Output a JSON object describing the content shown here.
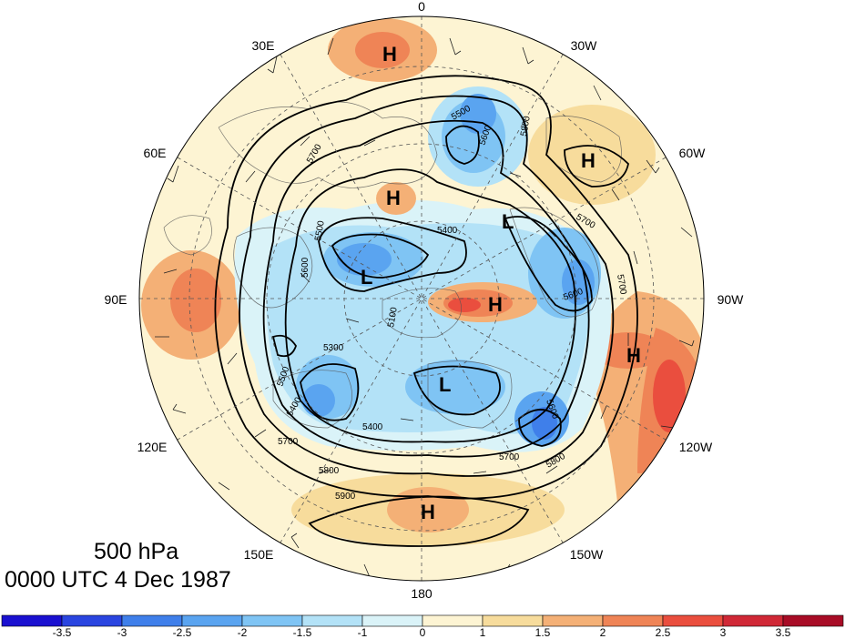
{
  "map": {
    "level": "500 hPa",
    "valid_time": "0000 UTC 4 Dec 1987",
    "longitude_labels": {
      "top": "0",
      "top_left": "30E",
      "top_right": "30W",
      "upper_left": "60E",
      "upper_right": "60W",
      "left": "90E",
      "right": "90W",
      "lower_left": "120E",
      "lower_right": "120W",
      "bottom_left": "150E",
      "bottom_right": "150W",
      "bottom": "180"
    },
    "pressure_centers": [
      {
        "type": "H"
      },
      {
        "type": "H"
      },
      {
        "type": "H"
      },
      {
        "type": "H"
      },
      {
        "type": "H"
      },
      {
        "type": "H"
      },
      {
        "type": "L"
      },
      {
        "type": "L"
      },
      {
        "type": "L"
      }
    ],
    "contour_labels": [
      "5500",
      "5600",
      "5700",
      "5800",
      "5400",
      "5500",
      "5600",
      "5700",
      "5300",
      "5100",
      "5400",
      "5400",
      "5600",
      "5700",
      "5700",
      "5800",
      "5800",
      "5500",
      "5700",
      "5900",
      "5600"
    ],
    "colorbar": {
      "ticks": [
        "-3.5",
        "-3",
        "-2.5",
        "-2",
        "-1.5",
        "-1",
        "0",
        "1",
        "1.5",
        "2",
        "2.5",
        "3",
        "3.5"
      ],
      "colors": [
        "#1a10d0",
        "#2a45e0",
        "#3f7fea",
        "#5aa4f0",
        "#7fc4f4",
        "#b3e2f7",
        "#daf3f8",
        "#fdf4d3",
        "#f7dc9c",
        "#f4b076",
        "#ef8456",
        "#ea4e3e",
        "#d02836",
        "#a80c26"
      ]
    }
  }
}
